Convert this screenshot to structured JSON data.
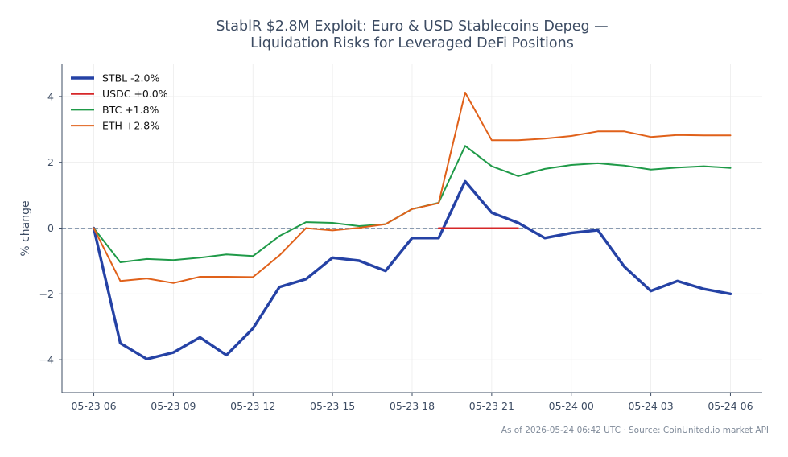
{
  "chart_data": {
    "type": "line",
    "title_line1": "StablR $2.8M Exploit: Euro & USD Stablecoins Depeg —",
    "title_line2": "Liquidation Risks for Leveraged DeFi Positions",
    "xlabel": "",
    "ylabel": "% change",
    "footer": "As of 2026-05-24 06:42 UTC · Source: CoinUnited.io market API",
    "x_ticks": [
      "05-23 06",
      "05-23 09",
      "05-23 12",
      "05-23 15",
      "05-23 18",
      "05-23 21",
      "05-24 00",
      "05-24 03",
      "05-24 06"
    ],
    "x_tick_hours": [
      0,
      3,
      6,
      9,
      12,
      15,
      18,
      21,
      24
    ],
    "y_ticks": [
      {
        "value": 4,
        "label": "4"
      },
      {
        "value": 2,
        "label": "2"
      },
      {
        "value": 0,
        "label": "0"
      },
      {
        "value": -2,
        "label": "−2"
      },
      {
        "value": -4,
        "label": "−4"
      }
    ],
    "xlim": [
      -1.2,
      25.2
    ],
    "ylim": [
      -5,
      5
    ],
    "grid": true,
    "legend_position": "top-left",
    "zero_line": true,
    "series": [
      {
        "name": "STBL -2.0%",
        "color": "#2542a5",
        "line_width": "thick",
        "x": [
          0,
          1,
          2,
          3,
          4,
          5,
          6,
          7,
          8,
          9,
          10,
          11,
          12,
          13,
          14,
          15,
          16,
          17,
          18,
          19,
          20,
          21,
          22,
          23,
          24
        ],
        "y": [
          0,
          -3.5,
          -3.98,
          -3.78,
          -3.32,
          -3.86,
          -3.05,
          -1.79,
          -1.55,
          -0.9,
          -0.99,
          -1.3,
          -0.3,
          -0.3,
          1.42,
          0.47,
          0.16,
          -0.3,
          -0.15,
          -0.06,
          -1.17,
          -1.91,
          -1.61,
          -1.85,
          -2.0
        ]
      },
      {
        "name": "USDC +0.0%",
        "color": "#d62728",
        "line_width": "normal",
        "x": [
          13,
          14,
          15,
          16
        ],
        "y": [
          0,
          0,
          0,
          0
        ]
      },
      {
        "name": "BTC +1.8%",
        "color": "#1f9a48",
        "line_width": "normal",
        "x": [
          0,
          1,
          2,
          3,
          4,
          5,
          6,
          7,
          8,
          9,
          10,
          11,
          12,
          13,
          14,
          15,
          16,
          17,
          18,
          19,
          20,
          21,
          22,
          23,
          24
        ],
        "y": [
          0,
          -1.04,
          -0.94,
          -0.97,
          -0.9,
          -0.8,
          -0.85,
          -0.24,
          0.18,
          0.16,
          0.06,
          0.12,
          0.58,
          0.77,
          2.5,
          1.88,
          1.58,
          1.8,
          1.92,
          1.97,
          1.9,
          1.78,
          1.84,
          1.88,
          1.83
        ]
      },
      {
        "name": "ETH +2.8%",
        "color": "#e0611a",
        "line_width": "normal",
        "x": [
          0,
          1,
          2,
          3,
          4,
          5,
          6,
          7,
          8,
          9,
          10,
          11,
          12,
          13,
          14,
          15,
          16,
          17,
          18,
          19,
          20,
          21,
          22,
          23,
          24
        ],
        "y": [
          0,
          -1.61,
          -1.53,
          -1.67,
          -1.48,
          -1.48,
          -1.49,
          -0.83,
          0,
          -0.07,
          0.01,
          0.12,
          0.58,
          0.76,
          4.12,
          2.67,
          2.67,
          2.72,
          2.8,
          2.94,
          2.94,
          2.77,
          2.83,
          2.82,
          2.82
        ]
      }
    ]
  }
}
